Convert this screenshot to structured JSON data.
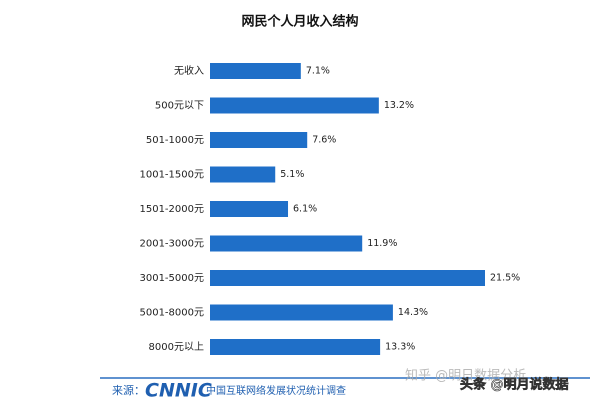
{
  "chart_data": {
    "type": "bar",
    "orientation": "horizontal",
    "title": "网民个人月收入结构",
    "categories": [
      "无收入",
      "500元以下",
      "501-1000元",
      "1001-1500元",
      "1501-2000元",
      "2001-3000元",
      "3001-5000元",
      "5001-8000元",
      "8000元以上"
    ],
    "values": [
      7.1,
      13.2,
      7.6,
      5.1,
      6.1,
      11.9,
      21.5,
      14.3,
      13.3
    ],
    "value_labels": [
      "7.1%",
      "13.2%",
      "7.6%",
      "5.1%",
      "6.1%",
      "11.9%",
      "21.5%",
      "14.3%",
      "13.3%"
    ],
    "color": "#1f6fc8"
  },
  "source": {
    "label": "来源：",
    "logo": "CNNIC",
    "text": "中国互联网络发展状况统计调查"
  },
  "watermarks": [
    "知乎 @明日数据分析",
    "头条 @明月说数据"
  ]
}
